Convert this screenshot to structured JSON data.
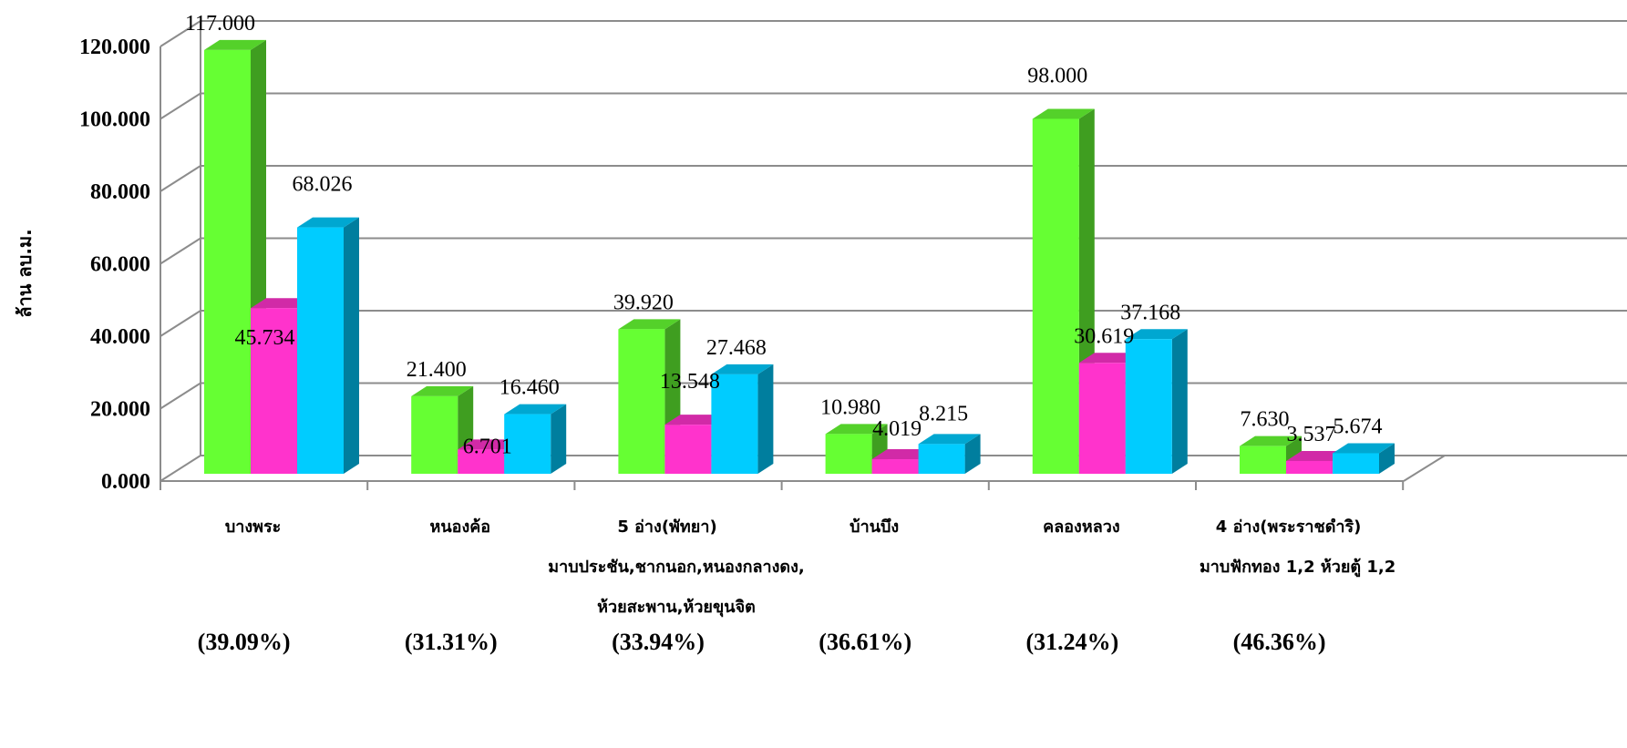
{
  "chart_data": {
    "type": "bar",
    "ylabel": "ล้าน ลบ.ม.",
    "ylim": [
      0,
      120
    ],
    "yticks": [
      "0.000",
      "20.000",
      "40.000",
      "60.000",
      "80.000",
      "100.000",
      "120.000"
    ],
    "grid": true,
    "categories": [
      {
        "lines": [
          "บางพระ"
        ],
        "percent": "(39.09%)"
      },
      {
        "lines": [
          "หนองค้อ"
        ],
        "percent": "(31.31%)"
      },
      {
        "lines": [
          "5 อ่าง(พัทยา)",
          "มาบประชัน,ชากนอก,หนองกลางดง,",
          "ห้วยสะพาน,ห้วยขุนจิต"
        ],
        "percent": "(33.94%)"
      },
      {
        "lines": [
          "บ้านบึง"
        ],
        "percent": "(36.61%)"
      },
      {
        "lines": [
          "คลองหลวง"
        ],
        "percent": "(31.24%)"
      },
      {
        "lines": [
          "4 อ่าง(พระราชดำริ)",
          "มาบฟักทอง 1,2 ห้วยตู้ 1,2"
        ],
        "percent": "(46.36%)"
      }
    ],
    "series": [
      {
        "values": [
          117.0,
          21.4,
          39.92,
          10.98,
          98.0,
          7.63
        ],
        "labels": [
          "117.000",
          "21.400",
          "39.920",
          "10.980",
          "98.000",
          "7.630"
        ],
        "color": "#66FF33"
      },
      {
        "values": [
          45.734,
          6.701,
          13.548,
          4.019,
          30.619,
          3.537
        ],
        "labels": [
          "45.734",
          "6.701",
          "13.548",
          "4.019",
          "30.619",
          "3.537"
        ],
        "color": "#FF33CC"
      },
      {
        "values": [
          68.026,
          16.46,
          27.468,
          8.215,
          37.168,
          5.674
        ],
        "labels": [
          "68.026",
          "16.460",
          "27.468",
          "8.215",
          "37.168",
          "5.674"
        ],
        "color": "#00CCFF"
      }
    ]
  }
}
